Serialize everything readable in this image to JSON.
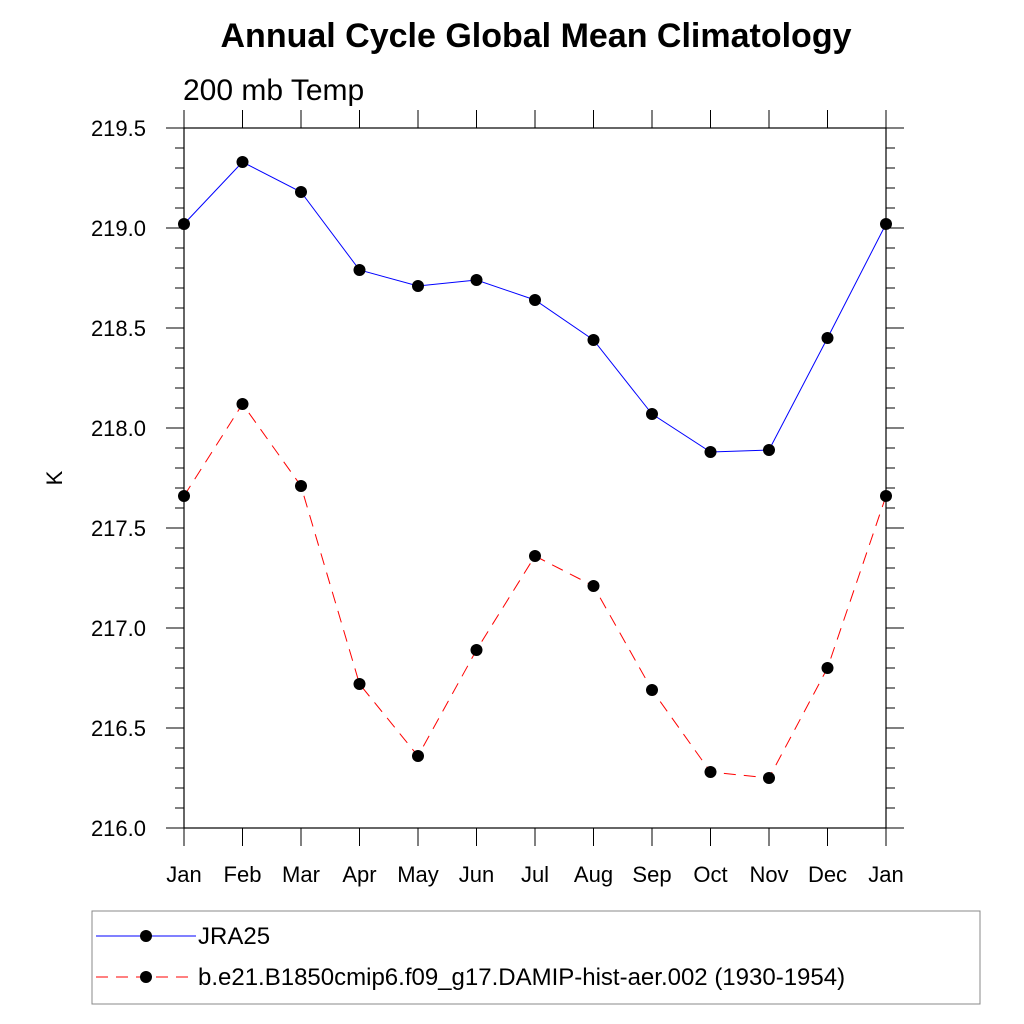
{
  "chart_data": {
    "type": "line",
    "title": "Annual Cycle Global Mean Climatology",
    "subtitle": "200 mb Temp",
    "xlabel": "",
    "ylabel": "K",
    "categories": [
      "Jan",
      "Feb",
      "Mar",
      "Apr",
      "May",
      "Jun",
      "Jul",
      "Aug",
      "Sep",
      "Oct",
      "Nov",
      "Dec",
      "Jan"
    ],
    "ylim": [
      216.0,
      219.5
    ],
    "yticks": [
      216.0,
      216.5,
      217.0,
      217.5,
      218.0,
      218.5,
      219.0,
      219.5
    ],
    "ytick_labels": [
      "216.0",
      "216.5",
      "217.0",
      "217.5",
      "218.0",
      "218.5",
      "219.0",
      "219.5"
    ],
    "grid": false,
    "legend_position": "bottom",
    "series": [
      {
        "name": "JRA25",
        "color": "#0000ff",
        "style": "solid",
        "marker": "filled-circle",
        "values": [
          219.02,
          219.33,
          219.18,
          218.79,
          218.71,
          218.74,
          218.64,
          218.44,
          218.07,
          217.88,
          217.89,
          218.45,
          219.02
        ]
      },
      {
        "name": "b.e21.B1850cmip6.f09_g17.DAMIP-hist-aer.002 (1930-1954)",
        "color": "#ff0000",
        "style": "dashed",
        "marker": "filled-circle",
        "values": [
          217.66,
          218.12,
          217.71,
          216.72,
          216.36,
          216.89,
          217.36,
          217.21,
          216.69,
          216.28,
          216.25,
          216.8,
          217.66
        ]
      }
    ]
  }
}
